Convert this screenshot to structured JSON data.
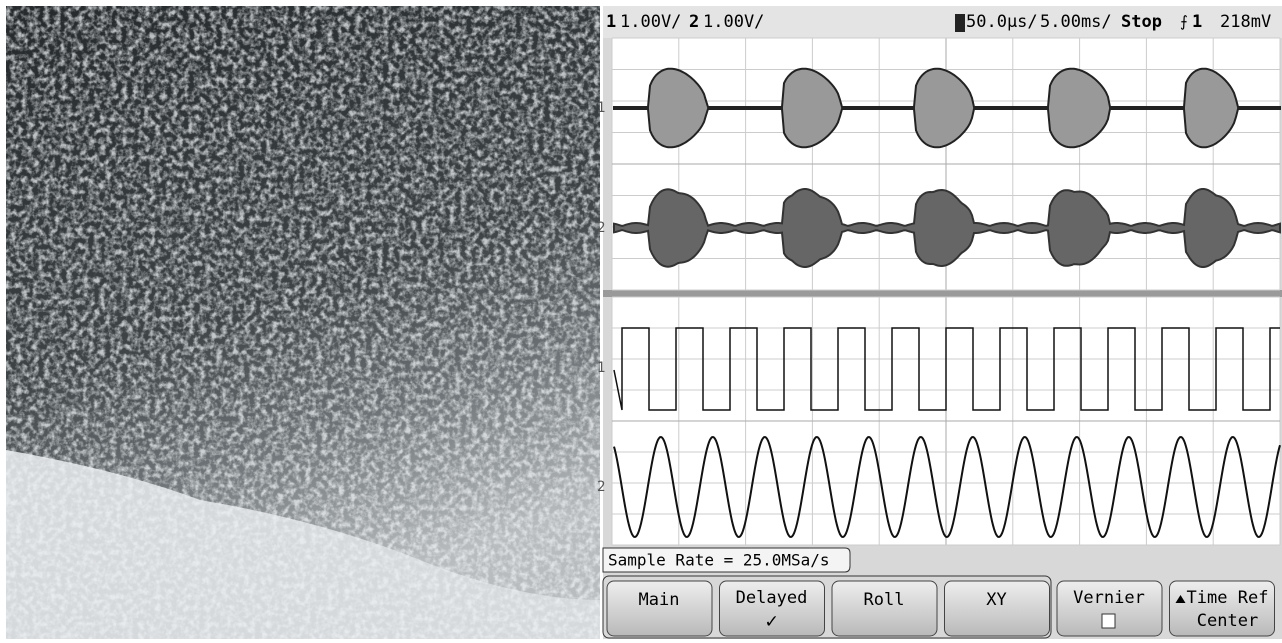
{
  "status": {
    "ch1": "1",
    "ch1_scale": "1.00V/",
    "ch2": "2",
    "ch2_scale": "1.00V/",
    "delayed_time": "50.0µs/",
    "main_time": "5.00ms/",
    "run_state": "Stop",
    "trigger_source": "1",
    "trigger_level": "218mV"
  },
  "markers": [
    "1",
    "2",
    "1",
    "2"
  ],
  "sample_rate": "Sample Rate = 25.0MSa/s",
  "softkeys": [
    {
      "label": "Main"
    },
    {
      "label": "Delayed",
      "indicator": "✓"
    },
    {
      "label": "Roll"
    },
    {
      "label": "XY"
    },
    {
      "label": "Vernier"
    },
    {
      "label": "Time Ref",
      "sub": "Center"
    }
  ]
}
